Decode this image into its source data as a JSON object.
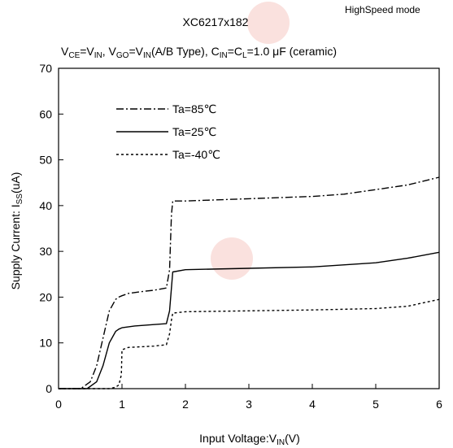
{
  "chart_data": {
    "type": "line",
    "title": "XC6217x182",
    "mode_label": "HighSpeed mode",
    "condition_parts": [
      {
        "t": "V",
        "s": "n"
      },
      {
        "t": "CE",
        "s": "sub"
      },
      {
        "t": "=V",
        "s": "n"
      },
      {
        "t": "IN",
        "s": "sub"
      },
      {
        "t": ", V",
        "s": "n"
      },
      {
        "t": "GO",
        "s": "sub"
      },
      {
        "t": "=V",
        "s": "n"
      },
      {
        "t": "IN",
        "s": "sub"
      },
      {
        "t": "(A/B Type), C",
        "s": "n"
      },
      {
        "t": "IN",
        "s": "sub"
      },
      {
        "t": "=C",
        "s": "n"
      },
      {
        "t": "L",
        "s": "sub"
      },
      {
        "t": "=1.0 μF (ceramic)",
        "s": "n"
      }
    ],
    "xlabel_parts": [
      {
        "t": "Input Voltage:V",
        "s": "n"
      },
      {
        "t": "IN",
        "s": "sub"
      },
      {
        "t": "(V)",
        "s": "n"
      }
    ],
    "ylabel_parts": [
      {
        "t": "Supply Current: I",
        "s": "n"
      },
      {
        "t": "SS",
        "s": "sub"
      },
      {
        "t": "(uA)",
        "s": "n"
      }
    ],
    "xlim": [
      0,
      6
    ],
    "ylim": [
      0,
      70
    ],
    "xticks": [
      0,
      1,
      2,
      3,
      4,
      5,
      6
    ],
    "yticks": [
      0,
      10,
      20,
      30,
      40,
      50,
      60,
      70
    ],
    "grid": false,
    "legend_position": "upper-left",
    "series": [
      {
        "name": "Ta=85℃",
        "dash": "dashdot",
        "x": [
          0,
          0.35,
          0.5,
          0.6,
          0.7,
          0.8,
          0.9,
          0.95,
          1.0,
          1.1,
          1.3,
          1.5,
          1.7,
          1.75,
          1.78,
          1.8,
          2.0,
          3.0,
          4.0,
          4.5,
          5.0,
          5.5,
          6.0
        ],
        "y": [
          0,
          0,
          1.5,
          5,
          11,
          17,
          19.5,
          20,
          20.3,
          20.8,
          21.2,
          21.5,
          22,
          26,
          38,
          41,
          41,
          41.5,
          42,
          42.5,
          43.5,
          44.5,
          46.2
        ]
      },
      {
        "name": "Ta=25℃",
        "dash": "solid",
        "x": [
          0,
          0.45,
          0.6,
          0.7,
          0.8,
          0.9,
          0.95,
          1.0,
          1.2,
          1.5,
          1.7,
          1.75,
          1.78,
          1.8,
          2.0,
          3.0,
          4.0,
          5.0,
          5.5,
          6.0
        ],
        "y": [
          0,
          0,
          1.5,
          5,
          10,
          12.5,
          13,
          13.3,
          13.7,
          14,
          14.2,
          17,
          22,
          25.5,
          26,
          26.3,
          26.6,
          27.5,
          28.5,
          29.8
        ]
      },
      {
        "name": "Ta=-40℃",
        "dash": "dotted",
        "x": [
          0,
          0.8,
          0.9,
          0.95,
          0.99,
          1.0,
          1.1,
          1.5,
          1.7,
          1.75,
          1.78,
          1.8,
          2.0,
          3.0,
          4.0,
          5.0,
          5.5,
          6.0
        ],
        "y": [
          0,
          0,
          0.3,
          0.8,
          3,
          8.5,
          9,
          9.3,
          9.6,
          12,
          15,
          16.5,
          16.8,
          17,
          17.2,
          17.5,
          18,
          19.5
        ]
      }
    ]
  }
}
